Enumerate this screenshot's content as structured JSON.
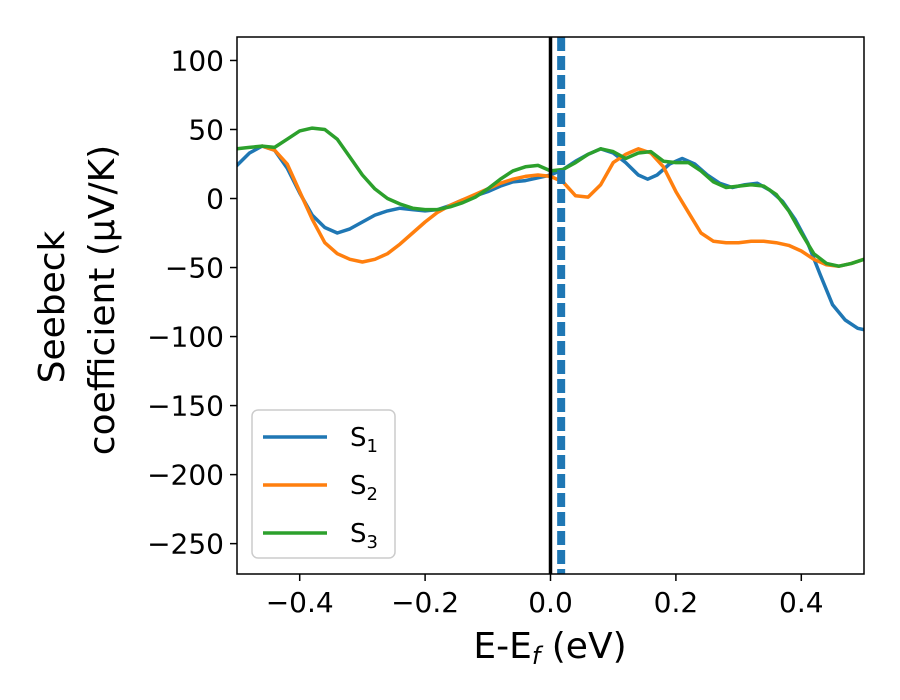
{
  "chart_data": {
    "type": "line",
    "title": "",
    "xlabel": {
      "main": "E-E",
      "sub": "f",
      "unit": " (eV)"
    },
    "ylabel": {
      "line1": "Seebeck",
      "line2": "coefficient  (μV/K)"
    },
    "xlim": [
      -0.5,
      0.5
    ],
    "ylim": [
      -272,
      117
    ],
    "xticks": [
      -0.4,
      -0.2,
      0.0,
      0.2,
      0.4
    ],
    "xtick_labels": [
      "−0.4",
      "−0.2",
      "0.0",
      "0.2",
      "0.4"
    ],
    "yticks": [
      100,
      50,
      0,
      -50,
      -100,
      -150,
      -200,
      -250
    ],
    "ytick_labels": [
      "100",
      "50",
      "0",
      "−50",
      "−100",
      "−150",
      "−200",
      "−250"
    ],
    "grid": false,
    "legend_position": "lower-left",
    "vlines": [
      {
        "x": 0.0,
        "color": "#000000",
        "style": "solid"
      },
      {
        "x": 0.017,
        "color": "#1f77b4",
        "style": "dashed"
      }
    ],
    "series": [
      {
        "name": "S",
        "sub": "1",
        "color": "#1f77b4",
        "points": [
          [
            -0.5,
            24
          ],
          [
            -0.48,
            33
          ],
          [
            -0.46,
            38
          ],
          [
            -0.44,
            35
          ],
          [
            -0.42,
            22
          ],
          [
            -0.4,
            4
          ],
          [
            -0.38,
            -12
          ],
          [
            -0.36,
            -21
          ],
          [
            -0.34,
            -25
          ],
          [
            -0.32,
            -22
          ],
          [
            -0.3,
            -17
          ],
          [
            -0.28,
            -12
          ],
          [
            -0.26,
            -9
          ],
          [
            -0.24,
            -7
          ],
          [
            -0.22,
            -8
          ],
          [
            -0.2,
            -9
          ],
          [
            -0.18,
            -8
          ],
          [
            -0.16,
            -5
          ],
          [
            -0.14,
            -1
          ],
          [
            -0.12,
            2
          ],
          [
            -0.1,
            5
          ],
          [
            -0.08,
            9
          ],
          [
            -0.06,
            12
          ],
          [
            -0.04,
            13
          ],
          [
            -0.02,
            15
          ],
          [
            0.0,
            17
          ],
          [
            0.02,
            21
          ],
          [
            0.04,
            27
          ],
          [
            0.06,
            32
          ],
          [
            0.08,
            36
          ],
          [
            0.1,
            33
          ],
          [
            0.12,
            26
          ],
          [
            0.14,
            17
          ],
          [
            0.155,
            14
          ],
          [
            0.17,
            17
          ],
          [
            0.19,
            25
          ],
          [
            0.21,
            29
          ],
          [
            0.23,
            25
          ],
          [
            0.25,
            17
          ],
          [
            0.27,
            11
          ],
          [
            0.29,
            8
          ],
          [
            0.31,
            10
          ],
          [
            0.33,
            11
          ],
          [
            0.35,
            6
          ],
          [
            0.37,
            -2
          ],
          [
            0.39,
            -15
          ],
          [
            0.41,
            -32
          ],
          [
            0.43,
            -55
          ],
          [
            0.45,
            -77
          ],
          [
            0.47,
            -88
          ],
          [
            0.49,
            -94
          ],
          [
            0.5,
            -95
          ]
        ]
      },
      {
        "name": "S",
        "sub": "2",
        "color": "#ff7f0e",
        "points": [
          [
            -0.46,
            38
          ],
          [
            -0.44,
            35
          ],
          [
            -0.42,
            25
          ],
          [
            -0.4,
            5
          ],
          [
            -0.38,
            -15
          ],
          [
            -0.36,
            -32
          ],
          [
            -0.34,
            -40
          ],
          [
            -0.32,
            -44
          ],
          [
            -0.3,
            -46
          ],
          [
            -0.28,
            -44
          ],
          [
            -0.26,
            -40
          ],
          [
            -0.24,
            -33
          ],
          [
            -0.22,
            -25
          ],
          [
            -0.2,
            -17
          ],
          [
            -0.18,
            -10
          ],
          [
            -0.16,
            -5
          ],
          [
            -0.14,
            -1
          ],
          [
            -0.12,
            3
          ],
          [
            -0.1,
            7
          ],
          [
            -0.08,
            11
          ],
          [
            -0.06,
            14
          ],
          [
            -0.04,
            16
          ],
          [
            -0.02,
            17
          ],
          [
            0.0,
            16
          ],
          [
            0.02,
            12
          ],
          [
            0.04,
            2
          ],
          [
            0.06,
            1
          ],
          [
            0.08,
            10
          ],
          [
            0.1,
            26
          ],
          [
            0.12,
            32
          ],
          [
            0.14,
            36
          ],
          [
            0.16,
            33
          ],
          [
            0.18,
            23
          ],
          [
            0.2,
            5
          ],
          [
            0.22,
            -10
          ],
          [
            0.24,
            -25
          ],
          [
            0.26,
            -31
          ],
          [
            0.28,
            -32
          ],
          [
            0.3,
            -32
          ],
          [
            0.32,
            -31
          ],
          [
            0.34,
            -31
          ],
          [
            0.36,
            -32
          ],
          [
            0.38,
            -34
          ],
          [
            0.4,
            -38
          ],
          [
            0.42,
            -44
          ],
          [
            0.44,
            -48
          ],
          [
            0.46,
            -49
          ],
          [
            0.48,
            -47
          ],
          [
            0.5,
            -44
          ]
        ]
      },
      {
        "name": "S",
        "sub": "3",
        "color": "#2ca02c",
        "points": [
          [
            -0.5,
            36
          ],
          [
            -0.48,
            37
          ],
          [
            -0.46,
            38
          ],
          [
            -0.44,
            37
          ],
          [
            -0.42,
            43
          ],
          [
            -0.4,
            49
          ],
          [
            -0.38,
            51
          ],
          [
            -0.36,
            50
          ],
          [
            -0.34,
            43
          ],
          [
            -0.32,
            30
          ],
          [
            -0.3,
            17
          ],
          [
            -0.28,
            7
          ],
          [
            -0.26,
            0
          ],
          [
            -0.24,
            -4
          ],
          [
            -0.22,
            -7
          ],
          [
            -0.2,
            -8
          ],
          [
            -0.18,
            -8
          ],
          [
            -0.16,
            -6
          ],
          [
            -0.14,
            -3
          ],
          [
            -0.12,
            1
          ],
          [
            -0.1,
            7
          ],
          [
            -0.08,
            14
          ],
          [
            -0.06,
            20
          ],
          [
            -0.04,
            23
          ],
          [
            -0.02,
            24
          ],
          [
            0.0,
            20
          ],
          [
            0.02,
            21
          ],
          [
            0.04,
            26
          ],
          [
            0.06,
            32
          ],
          [
            0.08,
            36
          ],
          [
            0.1,
            34
          ],
          [
            0.12,
            29
          ],
          [
            0.14,
            33
          ],
          [
            0.16,
            34
          ],
          [
            0.18,
            27
          ],
          [
            0.2,
            26
          ],
          [
            0.22,
            26
          ],
          [
            0.24,
            20
          ],
          [
            0.26,
            12
          ],
          [
            0.28,
            8
          ],
          [
            0.3,
            9
          ],
          [
            0.32,
            10
          ],
          [
            0.34,
            9
          ],
          [
            0.36,
            3
          ],
          [
            0.38,
            -9
          ],
          [
            0.4,
            -25
          ],
          [
            0.42,
            -40
          ],
          [
            0.44,
            -47
          ],
          [
            0.46,
            -49
          ],
          [
            0.48,
            -47
          ],
          [
            0.5,
            -44
          ]
        ]
      }
    ]
  }
}
